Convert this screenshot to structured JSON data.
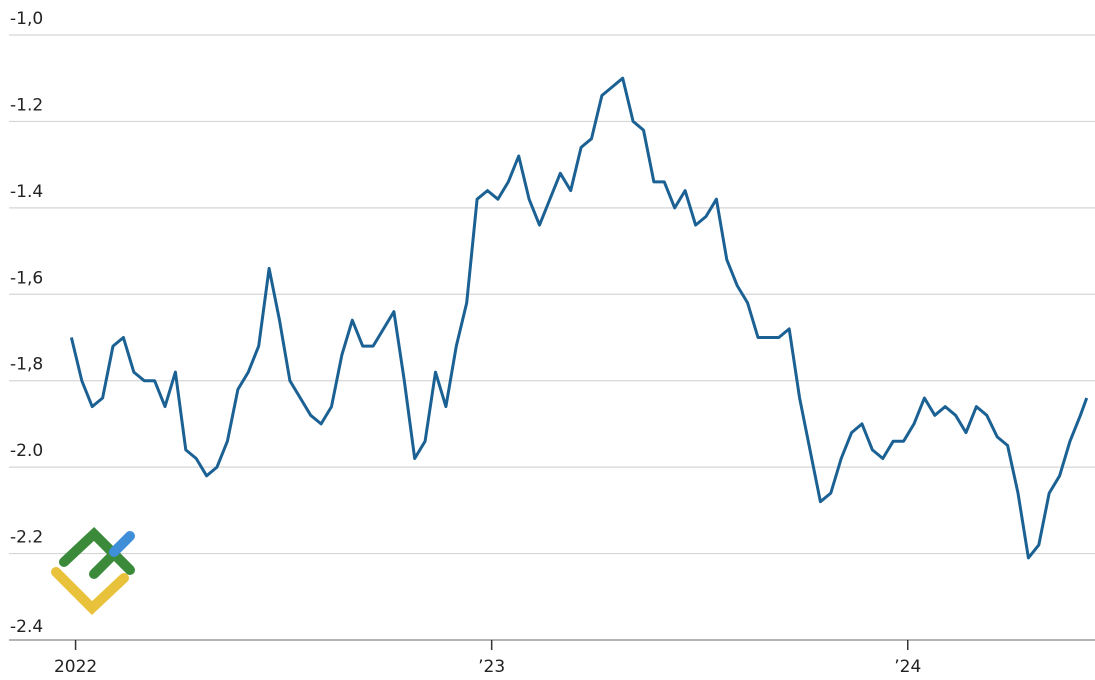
{
  "chart_data": {
    "type": "line",
    "x": [
      2021.99,
      2022.015,
      2022.04,
      2022.065,
      2022.09,
      2022.115,
      2022.14,
      2022.165,
      2022.19,
      2022.215,
      2022.24,
      2022.265,
      2022.29,
      2022.315,
      2022.34,
      2022.365,
      2022.39,
      2022.415,
      2022.44,
      2022.465,
      2022.49,
      2022.515,
      2022.54,
      2022.565,
      2022.59,
      2022.615,
      2022.64,
      2022.665,
      2022.69,
      2022.715,
      2022.74,
      2022.765,
      2022.79,
      2022.815,
      2022.84,
      2022.865,
      2022.89,
      2022.915,
      2022.94,
      2022.965,
      2022.99,
      2023.015,
      2023.04,
      2023.065,
      2023.09,
      2023.115,
      2023.14,
      2023.165,
      2023.19,
      2023.215,
      2023.24,
      2023.265,
      2023.29,
      2023.315,
      2023.34,
      2023.365,
      2023.39,
      2023.415,
      2023.44,
      2023.465,
      2023.49,
      2023.515,
      2023.54,
      2023.565,
      2023.59,
      2023.615,
      2023.64,
      2023.665,
      2023.69,
      2023.715,
      2023.74,
      2023.765,
      2023.79,
      2023.815,
      2023.84,
      2023.865,
      2023.89,
      2023.915,
      2023.94,
      2023.965,
      2023.99,
      2024.015,
      2024.04,
      2024.065,
      2024.09,
      2024.115,
      2024.14,
      2024.165,
      2024.19,
      2024.215,
      2024.24,
      2024.265,
      2024.29,
      2024.315,
      2024.34,
      2024.365,
      2024.39,
      2024.415,
      2024.43
    ],
    "series": [
      {
        "color": "#1b6193",
        "values": [
          -1.7,
          -1.8,
          -1.86,
          -1.84,
          -1.72,
          -1.7,
          -1.78,
          -1.8,
          -1.8,
          -1.86,
          -1.78,
          -1.96,
          -1.98,
          -2.02,
          -2.0,
          -1.94,
          -1.82,
          -1.78,
          -1.72,
          -1.54,
          -1.66,
          -1.8,
          -1.84,
          -1.88,
          -1.9,
          -1.86,
          -1.74,
          -1.66,
          -1.72,
          -1.72,
          -1.68,
          -1.64,
          -1.8,
          -1.98,
          -1.94,
          -1.78,
          -1.86,
          -1.72,
          -1.62,
          -1.38,
          -1.36,
          -1.38,
          -1.34,
          -1.28,
          -1.38,
          -1.44,
          -1.38,
          -1.32,
          -1.36,
          -1.26,
          -1.24,
          -1.14,
          -1.12,
          -1.1,
          -1.2,
          -1.22,
          -1.34,
          -1.34,
          -1.4,
          -1.36,
          -1.44,
          -1.42,
          -1.38,
          -1.52,
          -1.58,
          -1.62,
          -1.7,
          -1.7,
          -1.7,
          -1.68,
          -1.84,
          -1.96,
          -2.08,
          -2.06,
          -1.98,
          -1.92,
          -1.9,
          -1.96,
          -1.98,
          -1.94,
          -1.94,
          -1.9,
          -1.84,
          -1.88,
          -1.86,
          -1.88,
          -1.92,
          -1.86,
          -1.88,
          -1.93,
          -1.95,
          -2.06,
          -2.21,
          -2.18,
          -2.06,
          -2.02,
          -1.94,
          -1.88,
          -1.84
        ]
      }
    ],
    "xlim": [
      2021.84,
      2024.45
    ],
    "xticks": [
      {
        "value": 2022,
        "label": "2022"
      },
      {
        "value": 2023,
        "label": "’23"
      },
      {
        "value": 2024,
        "label": "’24"
      }
    ],
    "ylim": [
      -2.4,
      -1.0
    ],
    "yticks": [
      {
        "value": -1.0,
        "label": "-1,0"
      },
      {
        "value": -1.2,
        "label": "-1.2"
      },
      {
        "value": -1.4,
        "label": "-1.4"
      },
      {
        "value": -1.6,
        "label": "-1,6"
      },
      {
        "value": -1.8,
        "label": "-1,8"
      },
      {
        "value": -2.0,
        "label": "-2.0"
      },
      {
        "value": -2.2,
        "label": "-2.2"
      },
      {
        "value": -2.4,
        "label": "-2.4"
      }
    ],
    "grid": true
  }
}
